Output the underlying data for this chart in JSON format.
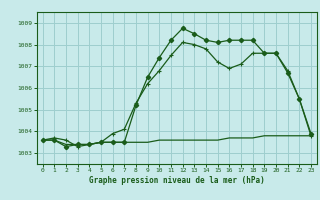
{
  "bg_color": "#c8eaea",
  "grid_color": "#9ecece",
  "line_color": "#1a5c1a",
  "title": "Graphe pression niveau de la mer (hPa)",
  "xlim": [
    -0.5,
    23.5
  ],
  "ylim": [
    1002.5,
    1009.5
  ],
  "yticks": [
    1003,
    1004,
    1005,
    1006,
    1007,
    1008,
    1009
  ],
  "xticks": [
    0,
    1,
    2,
    3,
    4,
    5,
    6,
    7,
    8,
    9,
    10,
    11,
    12,
    13,
    14,
    15,
    16,
    17,
    18,
    19,
    20,
    21,
    22,
    23
  ],
  "line1_x": [
    0,
    1,
    2,
    3,
    4,
    5,
    6,
    7,
    8,
    9,
    10,
    11,
    12,
    13,
    14,
    15,
    16,
    17,
    18,
    19,
    20,
    21,
    22,
    23
  ],
  "line1_y": [
    1003.6,
    1003.6,
    1003.3,
    1003.4,
    1003.4,
    1003.5,
    1003.5,
    1003.5,
    1005.2,
    1006.5,
    1007.4,
    1008.2,
    1008.75,
    1008.5,
    1008.2,
    1008.1,
    1008.2,
    1008.2,
    1008.2,
    1007.6,
    1007.6,
    1006.7,
    1005.5,
    1003.9
  ],
  "line2_x": [
    0,
    1,
    2,
    3,
    4,
    5,
    6,
    7,
    8,
    9,
    10,
    11,
    12,
    13,
    14,
    15,
    16,
    17,
    18,
    19,
    20,
    21,
    22,
    23
  ],
  "line2_y": [
    1003.6,
    1003.7,
    1003.6,
    1003.3,
    1003.4,
    1003.5,
    1003.9,
    1004.1,
    1005.3,
    1006.2,
    1006.8,
    1007.5,
    1008.1,
    1008.0,
    1007.8,
    1007.2,
    1006.9,
    1007.1,
    1007.6,
    1007.6,
    1007.6,
    1006.8,
    1005.5,
    1003.8
  ],
  "line3_x": [
    0,
    1,
    2,
    3,
    4,
    5,
    6,
    7,
    8,
    9,
    10,
    11,
    12,
    13,
    14,
    15,
    16,
    17,
    18,
    19,
    20,
    21,
    22,
    23
  ],
  "line3_y": [
    1003.6,
    1003.6,
    1003.4,
    1003.4,
    1003.4,
    1003.5,
    1003.5,
    1003.5,
    1003.5,
    1003.5,
    1003.6,
    1003.6,
    1003.6,
    1003.6,
    1003.6,
    1003.6,
    1003.7,
    1003.7,
    1003.7,
    1003.8,
    1003.8,
    1003.8,
    1003.8,
    1003.8
  ]
}
